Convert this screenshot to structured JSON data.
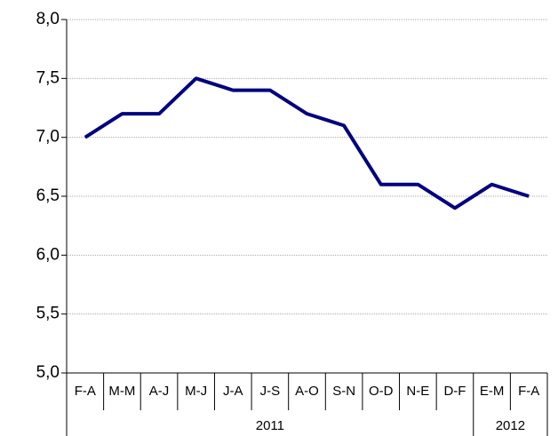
{
  "chart_data": {
    "type": "line",
    "categories": [
      "F-A",
      "M-M",
      "A-J",
      "M-J",
      "J-A",
      "J-S",
      "A-O",
      "S-N",
      "O-D",
      "N-E",
      "D-F",
      "E-M",
      "F-A"
    ],
    "x_groups": [
      {
        "label": "2011",
        "size": 11
      },
      {
        "label": "2012",
        "size": 2
      }
    ],
    "series": [
      {
        "color": "#000080",
        "values": [
          7.0,
          7.2,
          7.2,
          7.5,
          7.4,
          7.4,
          7.2,
          7.1,
          6.6,
          6.6,
          6.4,
          6.6,
          6.5
        ]
      }
    ],
    "ylim": [
      5.0,
      8.0
    ],
    "yticks": [
      {
        "value": 5.0,
        "label": "5,0"
      },
      {
        "value": 5.5,
        "label": "5,5"
      },
      {
        "value": 6.0,
        "label": "6,0"
      },
      {
        "value": 6.5,
        "label": "6,5"
      },
      {
        "value": 7.0,
        "label": "7,0"
      },
      {
        "value": 7.5,
        "label": "7,5"
      },
      {
        "value": 8.0,
        "label": "8,0"
      }
    ],
    "grid": true
  }
}
